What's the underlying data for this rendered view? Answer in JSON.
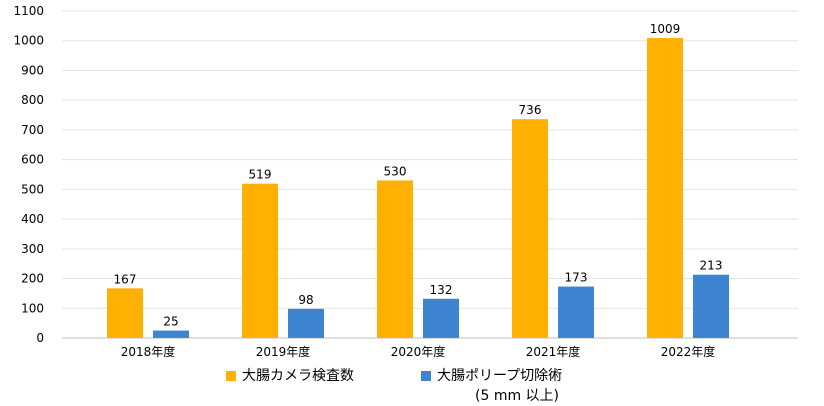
{
  "chart_data": {
    "type": "bar",
    "categories": [
      "2018年度",
      "2019年度",
      "2020年度",
      "2021年度",
      "2022年度"
    ],
    "series": [
      {
        "name": "大腸カメラ検査数",
        "color": "#FFB000",
        "values": [
          167,
          519,
          530,
          736,
          1009
        ]
      },
      {
        "name": "大腸ポリープ切除術",
        "name_line2": "(5 mm 以上)",
        "color": "#3D85D0",
        "values": [
          25,
          98,
          132,
          173,
          213
        ]
      }
    ],
    "ylim": [
      0,
      1100
    ],
    "yticks": [
      0,
      100,
      200,
      300,
      400,
      500,
      600,
      700,
      800,
      900,
      1000,
      1100
    ],
    "grid": true,
    "legend_position": "bottom",
    "data_labels": true
  }
}
